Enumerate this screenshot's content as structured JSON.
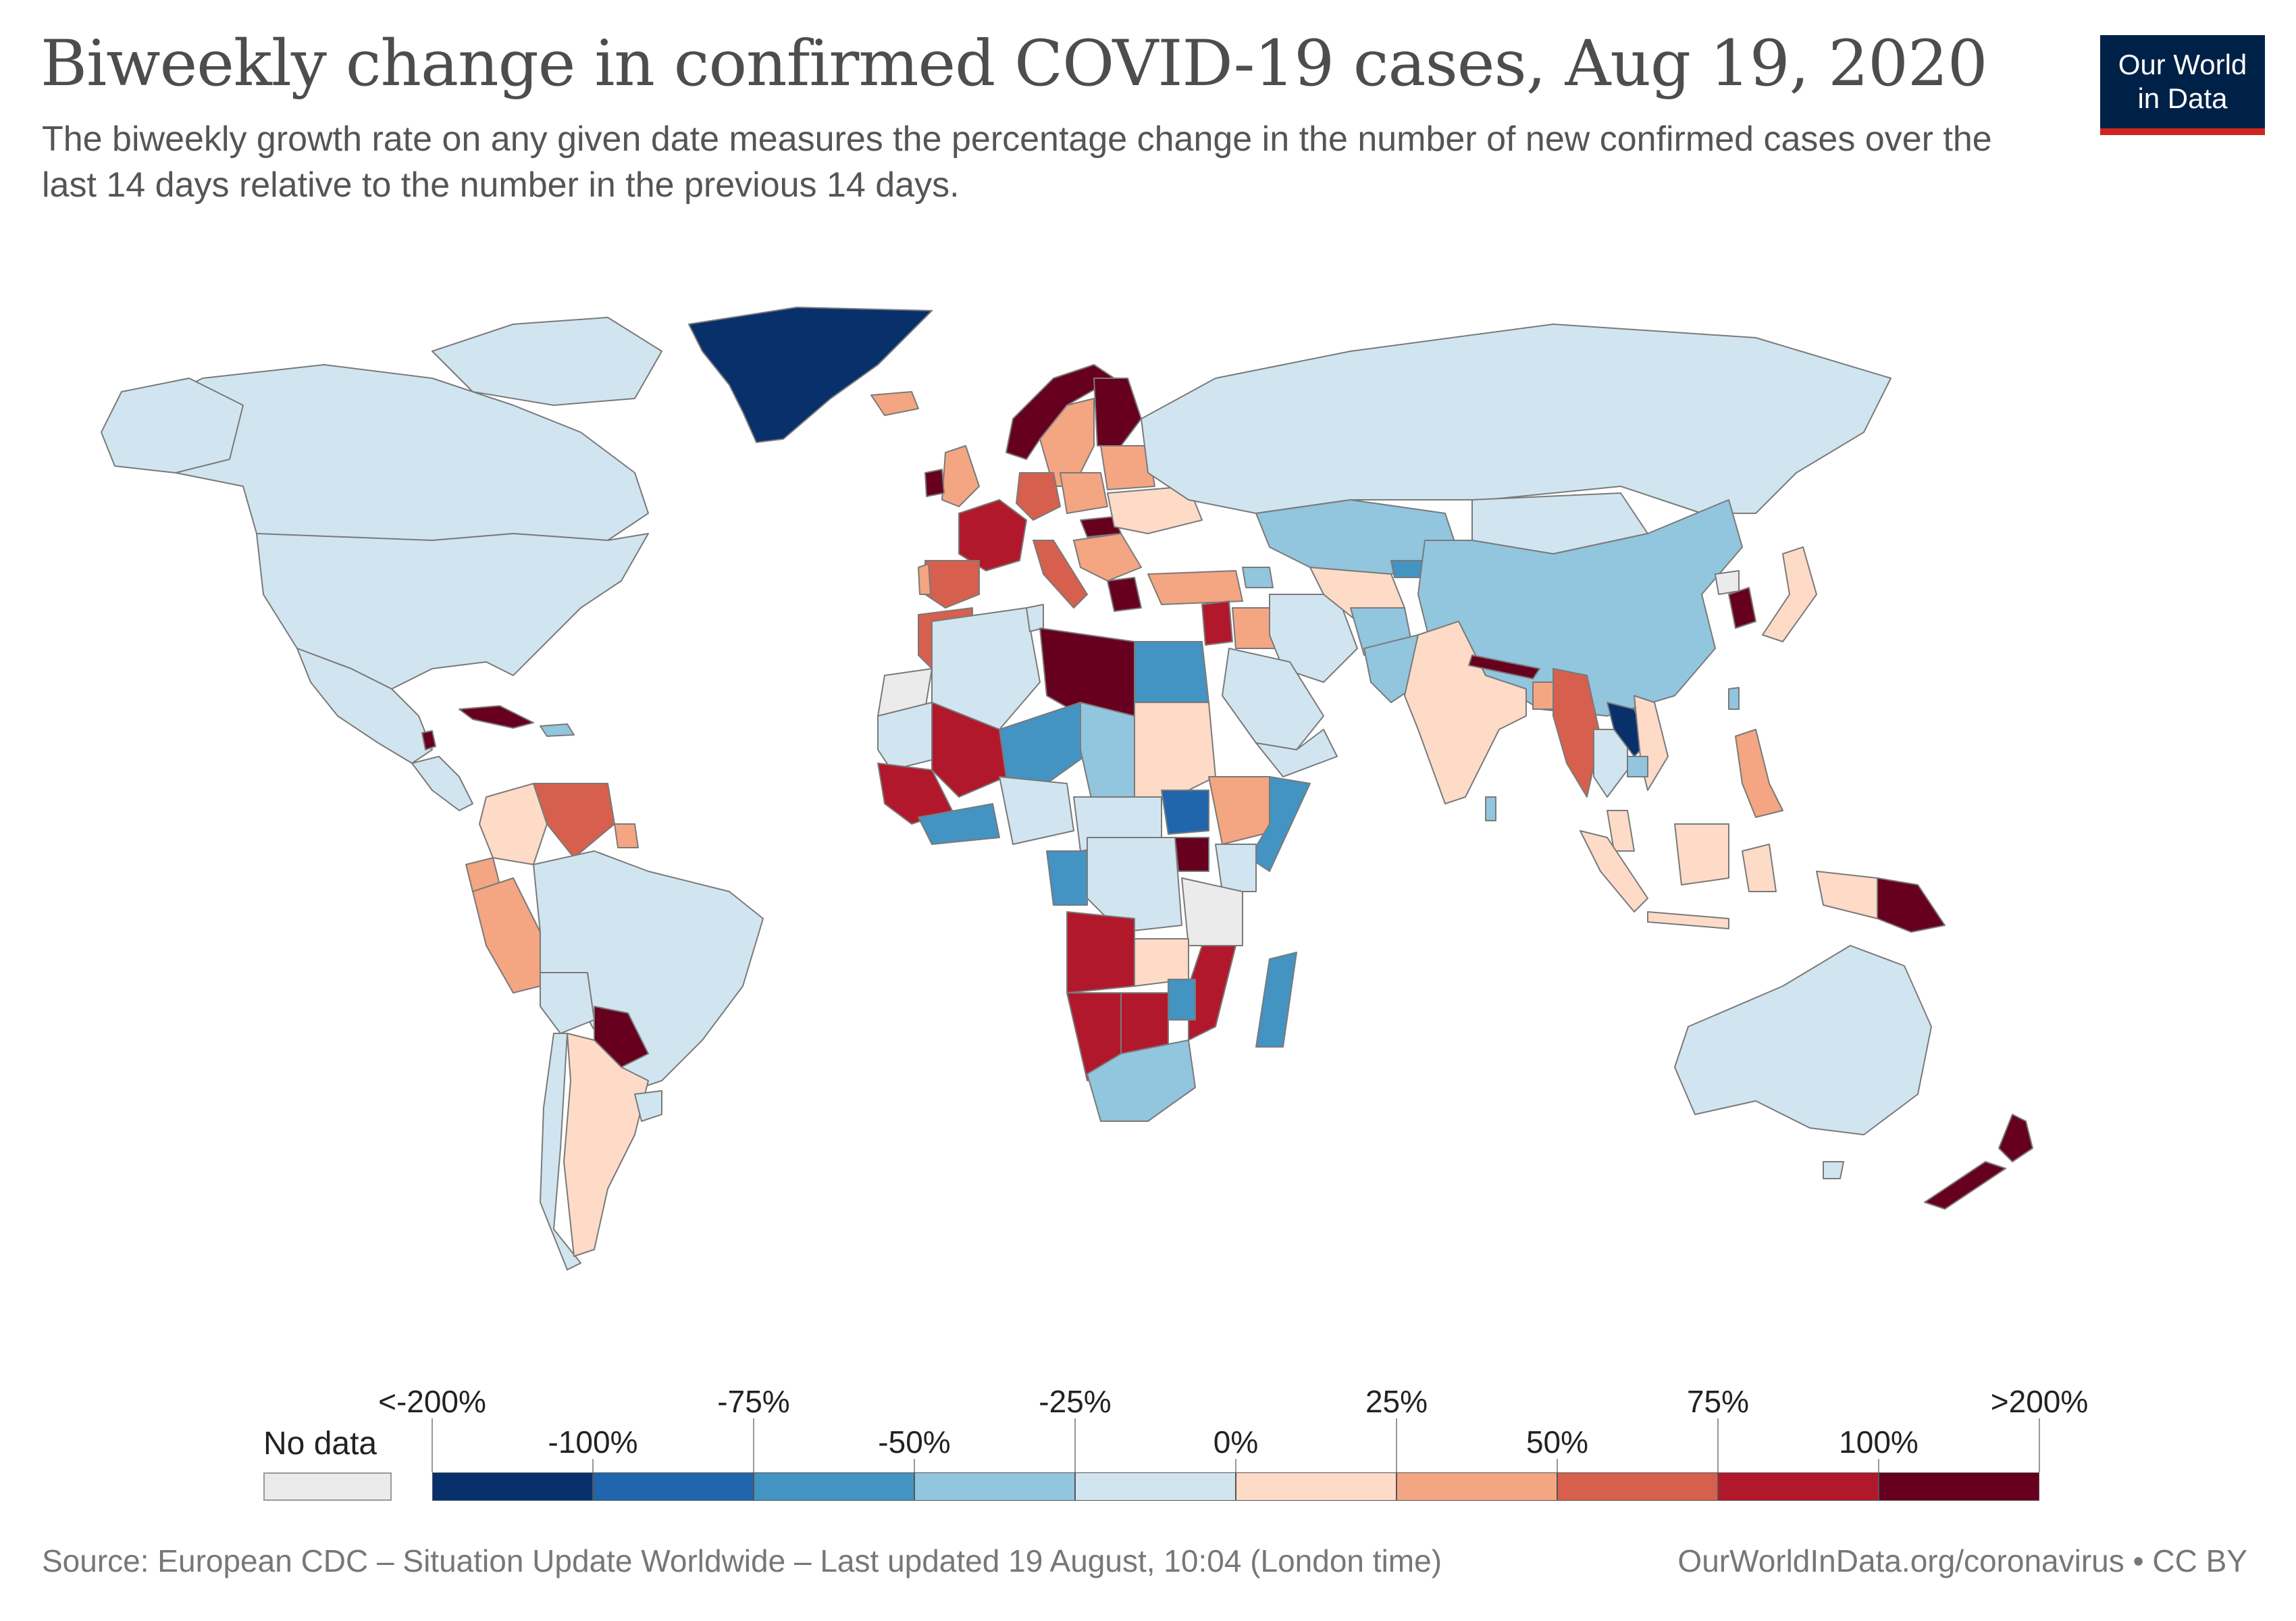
{
  "header": {
    "title": "Biweekly change in confirmed COVID-19 cases, Aug 19, 2020",
    "subtitle": "The biweekly growth rate on any given date measures the percentage change in the number of new confirmed cases over the last 14 days relative to the number in the previous 14 days.",
    "logo_line1": "Our World",
    "logo_line2": "in Data"
  },
  "legend": {
    "no_data_label": "No data",
    "no_data_color": "#ebebeb",
    "bins": [
      {
        "color": "#08306b"
      },
      {
        "color": "#2166ac"
      },
      {
        "color": "#4393c3"
      },
      {
        "color": "#92c5de"
      },
      {
        "color": "#d1e5f0"
      },
      {
        "color": "#fddbc7"
      },
      {
        "color": "#f4a582"
      },
      {
        "color": "#d6604d"
      },
      {
        "color": "#b2182b"
      },
      {
        "color": "#67001f"
      }
    ],
    "upper_labels": [
      "<-200%",
      "-75%",
      "-25%",
      "25%",
      "75%",
      ">200%"
    ],
    "lower_labels": [
      "-100%",
      "-50%",
      "0%",
      "50%",
      "100%"
    ]
  },
  "map": {
    "colors": {
      "below_-200": "#08306b",
      "-100_-75": "#2166ac",
      "-75_-50": "#4393c3",
      "-50_-25": "#92c5de",
      "-25_0": "#d1e5f0",
      "0_25": "#fddbc7",
      "25_50": "#f4a582",
      "50_75": "#d6604d",
      "75_100": "#b2182b",
      "above_200": "#67001f",
      "no_data": "#ebebeb",
      "border": "#7a7a7a"
    }
  },
  "footer": {
    "source": "Source: European CDC – Situation Update Worldwide – Last updated 19 August, 10:04 (London time)",
    "credit": "OurWorldInData.org/coronavirus • CC BY"
  }
}
